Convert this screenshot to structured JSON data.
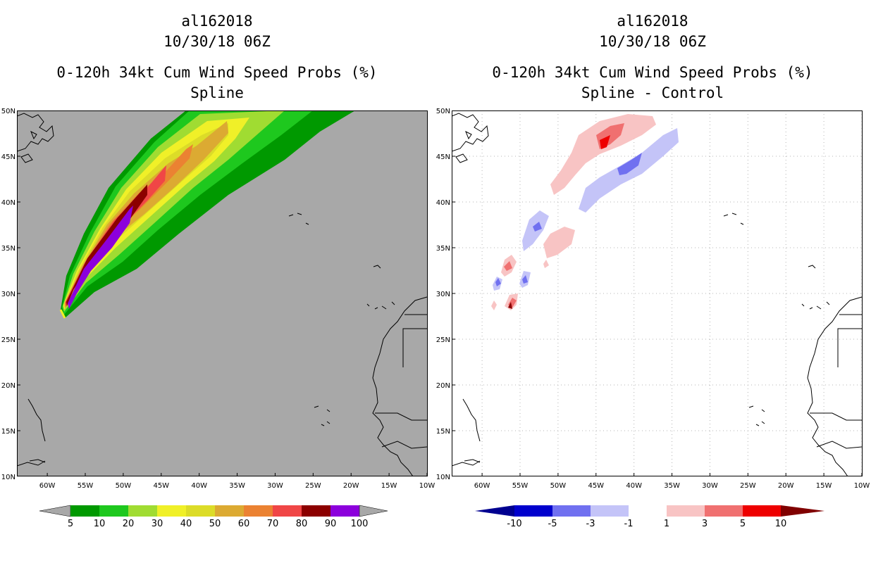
{
  "left": {
    "storm_id": "al162018",
    "datetime": "10/30/18 06Z",
    "product": "0-120h 34kt Cum Wind Speed Probs (%)",
    "method": "Spline"
  },
  "right": {
    "storm_id": "al162018",
    "datetime": "10/30/18 06Z",
    "product": "0-120h 34kt Cum Wind Speed Probs (%)",
    "method": "Spline - Control"
  },
  "axes": {
    "lon_labels": [
      "60W",
      "55W",
      "50W",
      "45W",
      "40W",
      "35W",
      "30W",
      "25W",
      "20W",
      "15W",
      "10W"
    ],
    "lat_labels": [
      "50N",
      "45N",
      "40N",
      "35N",
      "30N",
      "25N",
      "20N",
      "15N",
      "10N"
    ],
    "lon_range": [
      -64,
      -10
    ],
    "lat_range": [
      10,
      50
    ]
  },
  "colorbar_left": {
    "labels": [
      "5",
      "10",
      "20",
      "30",
      "40",
      "50",
      "60",
      "70",
      "80",
      "90",
      "100"
    ],
    "colors": [
      "#009900",
      "#1ec81e",
      "#a0dc32",
      "#f0f028",
      "#dcdc28",
      "#dcaa32",
      "#eb8232",
      "#f04646",
      "#8c0000",
      "#8c00dc"
    ],
    "end_color": "#a8a8a8"
  },
  "colorbar_right": {
    "labels": [
      "-10",
      "-5",
      "-3",
      "-1",
      "1",
      "3",
      "5",
      "10"
    ],
    "colors": [
      "#0000cd",
      "#7070f0",
      "#c4c4f8",
      "#ffffff",
      "#f8c4c4",
      "#f07070",
      "#ee0000"
    ],
    "low_color": "#000090",
    "high_color": "#800000"
  }
}
